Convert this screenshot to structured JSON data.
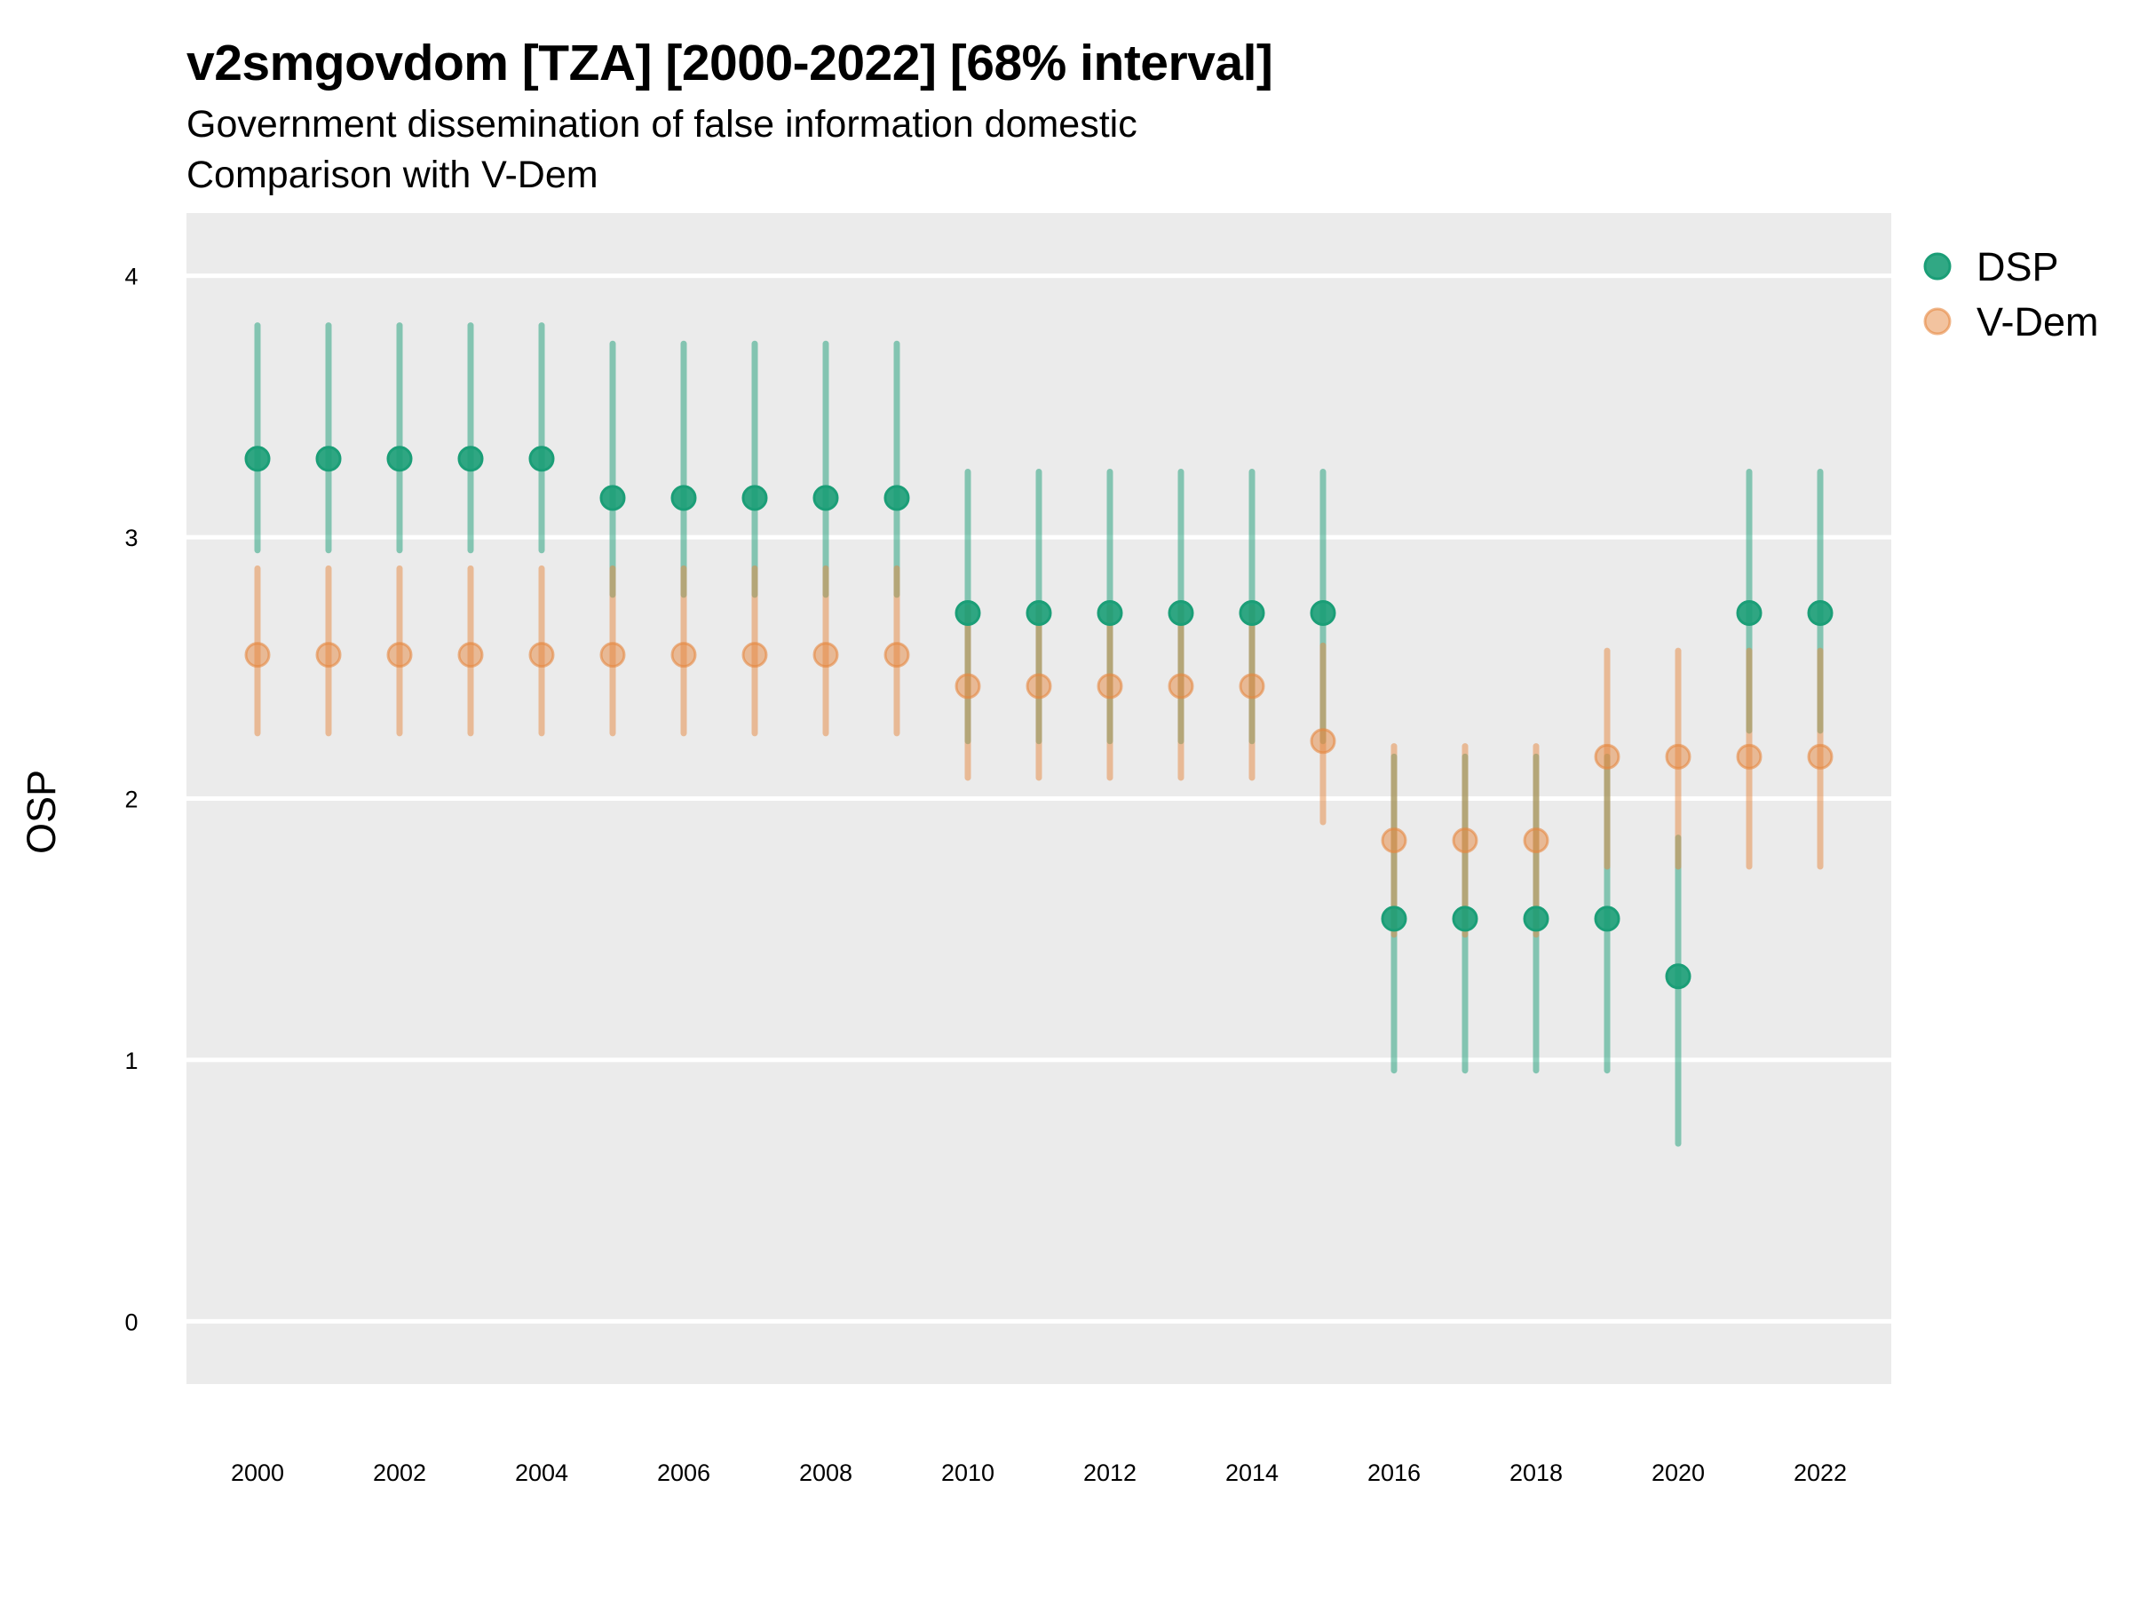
{
  "chart_data": {
    "type": "scatter",
    "subtype": "point-range",
    "title": "v2smgovdom [TZA] [2000-2022] [68% interval]",
    "subtitle": [
      "Government dissemination of false information domestic",
      "Comparison with V-Dem"
    ],
    "xlabel": "",
    "ylabel": "OSP",
    "xlim": [
      1999,
      2023
    ],
    "ylim": [
      -0.24,
      4.24
    ],
    "x_ticks": [
      2000,
      2002,
      2004,
      2006,
      2008,
      2010,
      2012,
      2014,
      2016,
      2018,
      2020,
      2022
    ],
    "x_tick_labels": [
      "2000",
      "2002",
      "2004",
      "2006",
      "2008",
      "2010",
      "2012",
      "2014",
      "2016",
      "2018",
      "2020",
      "2022"
    ],
    "y_ticks": [
      0,
      1,
      2,
      3,
      4
    ],
    "y_tick_labels": [
      "0",
      "1",
      "2",
      "3",
      "4"
    ],
    "grid": true,
    "legend_position": "right-top",
    "x": [
      2000,
      2001,
      2002,
      2003,
      2004,
      2005,
      2006,
      2007,
      2008,
      2009,
      2010,
      2011,
      2012,
      2013,
      2014,
      2015,
      2016,
      2017,
      2018,
      2019,
      2020,
      2021,
      2022
    ],
    "series": [
      {
        "name": "DSP",
        "color": "#1b9e77",
        "values": [
          3.3,
          3.3,
          3.3,
          3.3,
          3.3,
          3.15,
          3.15,
          3.15,
          3.15,
          3.15,
          2.71,
          2.71,
          2.71,
          2.71,
          2.71,
          2.71,
          1.54,
          1.54,
          1.54,
          1.54,
          1.32,
          2.71,
          2.71
        ],
        "lower": [
          2.95,
          2.95,
          2.95,
          2.95,
          2.95,
          2.78,
          2.78,
          2.78,
          2.78,
          2.78,
          2.22,
          2.22,
          2.22,
          2.22,
          2.22,
          2.22,
          0.96,
          0.96,
          0.96,
          0.96,
          0.68,
          2.26,
          2.26
        ],
        "upper": [
          3.81,
          3.81,
          3.81,
          3.81,
          3.81,
          3.74,
          3.74,
          3.74,
          3.74,
          3.74,
          3.25,
          3.25,
          3.25,
          3.25,
          3.25,
          3.25,
          2.16,
          2.16,
          2.16,
          2.16,
          1.85,
          3.25,
          3.25
        ]
      },
      {
        "name": "V-Dem",
        "color": "#e6873f",
        "values": [
          2.55,
          2.55,
          2.55,
          2.55,
          2.55,
          2.55,
          2.55,
          2.55,
          2.55,
          2.55,
          2.43,
          2.43,
          2.43,
          2.43,
          2.43,
          2.22,
          1.84,
          1.84,
          1.84,
          2.16,
          2.16,
          2.16,
          2.16
        ],
        "lower": [
          2.25,
          2.25,
          2.25,
          2.25,
          2.25,
          2.25,
          2.25,
          2.25,
          2.25,
          2.25,
          2.08,
          2.08,
          2.08,
          2.08,
          2.08,
          1.91,
          1.48,
          1.48,
          1.48,
          1.74,
          1.74,
          1.74,
          1.74
        ],
        "upper": [
          2.88,
          2.88,
          2.88,
          2.88,
          2.88,
          2.88,
          2.88,
          2.88,
          2.88,
          2.88,
          2.73,
          2.73,
          2.73,
          2.73,
          2.73,
          2.585,
          2.2,
          2.2,
          2.2,
          2.565,
          2.565,
          2.565,
          2.565
        ]
      }
    ]
  },
  "colors": {
    "panel_background": "#ebebeb",
    "gridline": "#ffffff",
    "dsp": "#1b9e77",
    "vdem": "#e6873f"
  }
}
